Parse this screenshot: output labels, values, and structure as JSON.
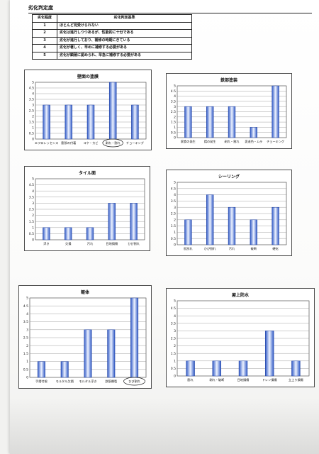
{
  "page_title": "劣化判定度",
  "criteria_table": {
    "headers": [
      "劣化程度",
      "劣化判定基準"
    ],
    "rows": [
      {
        "level": "1",
        "text": "ほとんど見受けられない"
      },
      {
        "level": "2",
        "text": "劣化は進行しつつあるが、性能的に十分である"
      },
      {
        "level": "3",
        "text": "劣化が進行しており、補修の時期にきている"
      },
      {
        "level": "4",
        "text": "劣化が著しく、早めに補修する必要がある"
      },
      {
        "level": "5",
        "text": "劣化が顕著に認められ、早急に補修する必要がある"
      }
    ]
  },
  "chart_data": [
    {
      "type": "bar",
      "title": "壁面の塗膜",
      "categories": [
        "エフロレッセンス",
        "膨張の付着",
        "コケ・カビ",
        "剥れ・割れ",
        "チョーキング"
      ],
      "values": [
        3,
        3,
        3,
        5,
        3
      ],
      "ylim": [
        0,
        5
      ],
      "yticks": [
        "0",
        "0.5",
        "1",
        "1.5",
        "2",
        "2.5",
        "3",
        "3.5",
        "4",
        "4.5",
        "5"
      ],
      "circled": [
        3
      ],
      "grid": true
    },
    {
      "type": "bar",
      "title": "鉄部塗装",
      "categories": [
        "腐食の発生",
        "錆の発生",
        "剥れ・割れ",
        "変退色・ムラ",
        "チョーキング"
      ],
      "values": [
        3,
        3,
        3,
        1,
        5
      ],
      "ylim": [
        0,
        5
      ],
      "yticks": [
        "0",
        "0.5",
        "1",
        "1.5",
        "2",
        "2.5",
        "3",
        "3.5",
        "4",
        "4.5",
        "5"
      ],
      "circled": [],
      "grid": true
    },
    {
      "type": "bar",
      "title": "タイル面",
      "categories": [
        "浮き",
        "欠損",
        "汚れ",
        "目地損傷",
        "ひび割れ"
      ],
      "values": [
        1,
        1,
        1,
        3,
        3
      ],
      "ylim": [
        0,
        5
      ],
      "yticks": [
        "0",
        "0.5",
        "1",
        "1.5",
        "2",
        "2.5",
        "3",
        "3.5",
        "4",
        "4.5",
        "5"
      ],
      "circled": [],
      "grid": true
    },
    {
      "type": "bar",
      "title": "シーリング",
      "categories": [
        "肌別れ",
        "ひび割れ",
        "汚れ",
        "破断",
        "硬化"
      ],
      "values": [
        2,
        4,
        3,
        2,
        3
      ],
      "ylim": [
        0,
        5
      ],
      "yticks": [
        "0",
        "0.5",
        "1",
        "1.5",
        "2",
        "2.5",
        "3",
        "3.5",
        "4",
        "4.5",
        "5"
      ],
      "circled": [],
      "grid": true
    },
    {
      "type": "bar",
      "title": "躯体",
      "categories": [
        "手摺付根",
        "モルタル欠損",
        "モルタル浮き",
        "鉄筋爆裂",
        "ひび割れ"
      ],
      "values": [
        1,
        1,
        3,
        3,
        5
      ],
      "ylim": [
        0,
        5
      ],
      "yticks": [
        "0",
        "0.5",
        "1",
        "1.5",
        "2",
        "2.5",
        "3",
        "3.5",
        "4",
        "4.5",
        "5"
      ],
      "circled": [
        4
      ],
      "grid": true
    },
    {
      "type": "bar",
      "title": "屋上防水",
      "categories": [
        "膨れ",
        "剥れ・破断",
        "目地損傷",
        "ドレン損傷",
        "立上り損傷"
      ],
      "values": [
        1,
        1,
        1,
        3,
        1
      ],
      "ylim": [
        0,
        5
      ],
      "yticks": [
        "0",
        "0.5",
        "1",
        "1.5",
        "2",
        "2.5",
        "3",
        "3.5",
        "4",
        "4.5",
        "5"
      ],
      "circled": [],
      "grid": true
    }
  ]
}
